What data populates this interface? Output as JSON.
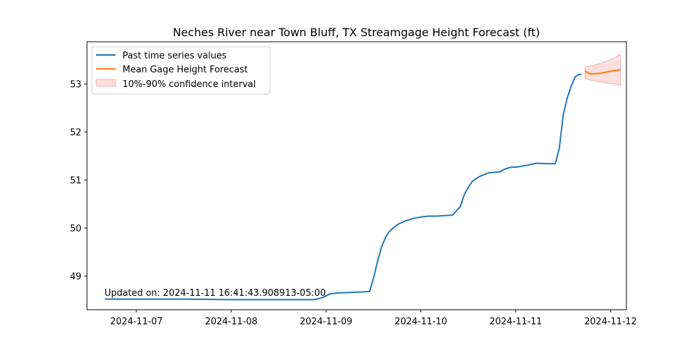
{
  "chart_data": {
    "type": "line",
    "title": "Neches River near Town Bluff, TX Streamgage Height Forecast (ft)",
    "xlabel": "",
    "ylabel": "",
    "x_ticks": [
      "2024-11-07",
      "2024-11-08",
      "2024-11-09",
      "2024-11-10",
      "2024-11-11",
      "2024-11-12"
    ],
    "y_ticks": [
      49,
      50,
      51,
      52,
      53
    ],
    "xlim": [
      "2024-11-06T11:30",
      "2024-11-12T04:00"
    ],
    "ylim": [
      48.3,
      53.88
    ],
    "grid": false,
    "legend_position": "top-left",
    "annotation": "Updated on: 2024-11-11 16:41:43.908913-05:00",
    "colors": {
      "past": "#1f77b4",
      "forecast": "#ff7f0e",
      "band": "#ffdede",
      "band_edge": "#f4a3a3"
    },
    "series": [
      {
        "name": "Past time series values",
        "x": [
          "2024-11-06T16:00",
          "2024-11-07T00:00",
          "2024-11-07T12:00",
          "2024-11-08T00:00",
          "2024-11-08T12:00",
          "2024-11-08T21:00",
          "2024-11-08T23:00",
          "2024-11-09T01:00",
          "2024-11-09T03:00",
          "2024-11-09T06:00",
          "2024-11-09T09:00",
          "2024-11-09T11:00",
          "2024-11-09T12:00",
          "2024-11-09T13:00",
          "2024-11-09T14:00",
          "2024-11-09T15:00",
          "2024-11-09T16:00",
          "2024-11-09T18:00",
          "2024-11-09T20:00",
          "2024-11-09T22:00",
          "2024-11-10T00:00",
          "2024-11-10T02:00",
          "2024-11-10T04:00",
          "2024-11-10T06:00",
          "2024-11-10T08:00",
          "2024-11-10T10:00",
          "2024-11-10T11:00",
          "2024-11-10T12:00",
          "2024-11-10T13:00",
          "2024-11-10T14:00",
          "2024-11-10T15:00",
          "2024-11-10T17:00",
          "2024-11-10T20:00",
          "2024-11-10T21:00",
          "2024-11-10T22:00",
          "2024-11-10T23:00",
          "2024-11-11T00:00",
          "2024-11-11T01:00",
          "2024-11-11T03:00",
          "2024-11-11T05:00",
          "2024-11-11T06:00",
          "2024-11-11T08:00",
          "2024-11-11T10:00",
          "2024-11-11T11:00",
          "2024-11-11T12:00",
          "2024-11-11T13:00",
          "2024-11-11T14:00",
          "2024-11-11T15:00",
          "2024-11-11T16:00",
          "2024-11-11T16:40"
        ],
        "y": [
          48.52,
          48.52,
          48.52,
          48.51,
          48.51,
          48.51,
          48.55,
          48.63,
          48.65,
          48.66,
          48.67,
          48.68,
          48.95,
          49.3,
          49.6,
          49.8,
          49.93,
          50.07,
          50.15,
          50.2,
          50.23,
          50.25,
          50.25,
          50.26,
          50.27,
          50.45,
          50.7,
          50.85,
          50.97,
          51.03,
          51.08,
          51.15,
          51.17,
          51.22,
          51.25,
          51.27,
          51.27,
          51.28,
          51.31,
          51.35,
          51.35,
          51.34,
          51.34,
          51.65,
          52.35,
          52.7,
          52.95,
          53.15,
          53.2,
          53.2
        ]
      },
      {
        "name": "Mean Gage Height Forecast",
        "x": [
          "2024-11-11T17:30",
          "2024-11-11T19:00",
          "2024-11-11T21:00",
          "2024-11-11T23:00",
          "2024-11-12T01:00",
          "2024-11-12T02:30"
        ],
        "y": [
          53.26,
          53.21,
          53.22,
          53.25,
          53.28,
          53.3
        ]
      },
      {
        "name": "10%-90% confidence interval",
        "x": [
          "2024-11-11T17:30",
          "2024-11-11T19:00",
          "2024-11-11T21:00",
          "2024-11-11T23:00",
          "2024-11-12T01:00",
          "2024-11-12T02:30"
        ],
        "upper": [
          53.35,
          53.38,
          53.42,
          53.48,
          53.55,
          53.62
        ],
        "lower": [
          53.12,
          53.08,
          53.05,
          53.02,
          53.0,
          52.98
        ]
      }
    ]
  }
}
